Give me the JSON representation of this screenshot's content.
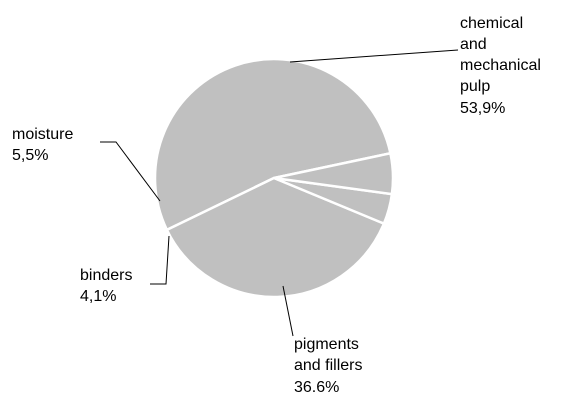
{
  "chart_data": {
    "type": "pie",
    "slices": [
      {
        "lines": [
          "chemical",
          "and",
          "mechanical",
          "pulp"
        ],
        "value_label": "53,9%",
        "value": 53.9
      },
      {
        "lines": [
          "pigments",
          "and fillers"
        ],
        "value_label": "36.6%",
        "value": 36.6
      },
      {
        "lines": [
          "binders"
        ],
        "value_label": "4,1%",
        "value": 4.1
      },
      {
        "lines": [
          "moisture"
        ],
        "value_label": "5,5%",
        "value": 5.5
      }
    ],
    "legend": "none",
    "colors": {
      "slice": "#c0c0c0",
      "separator": "#ffffff",
      "text": "#000000"
    }
  }
}
